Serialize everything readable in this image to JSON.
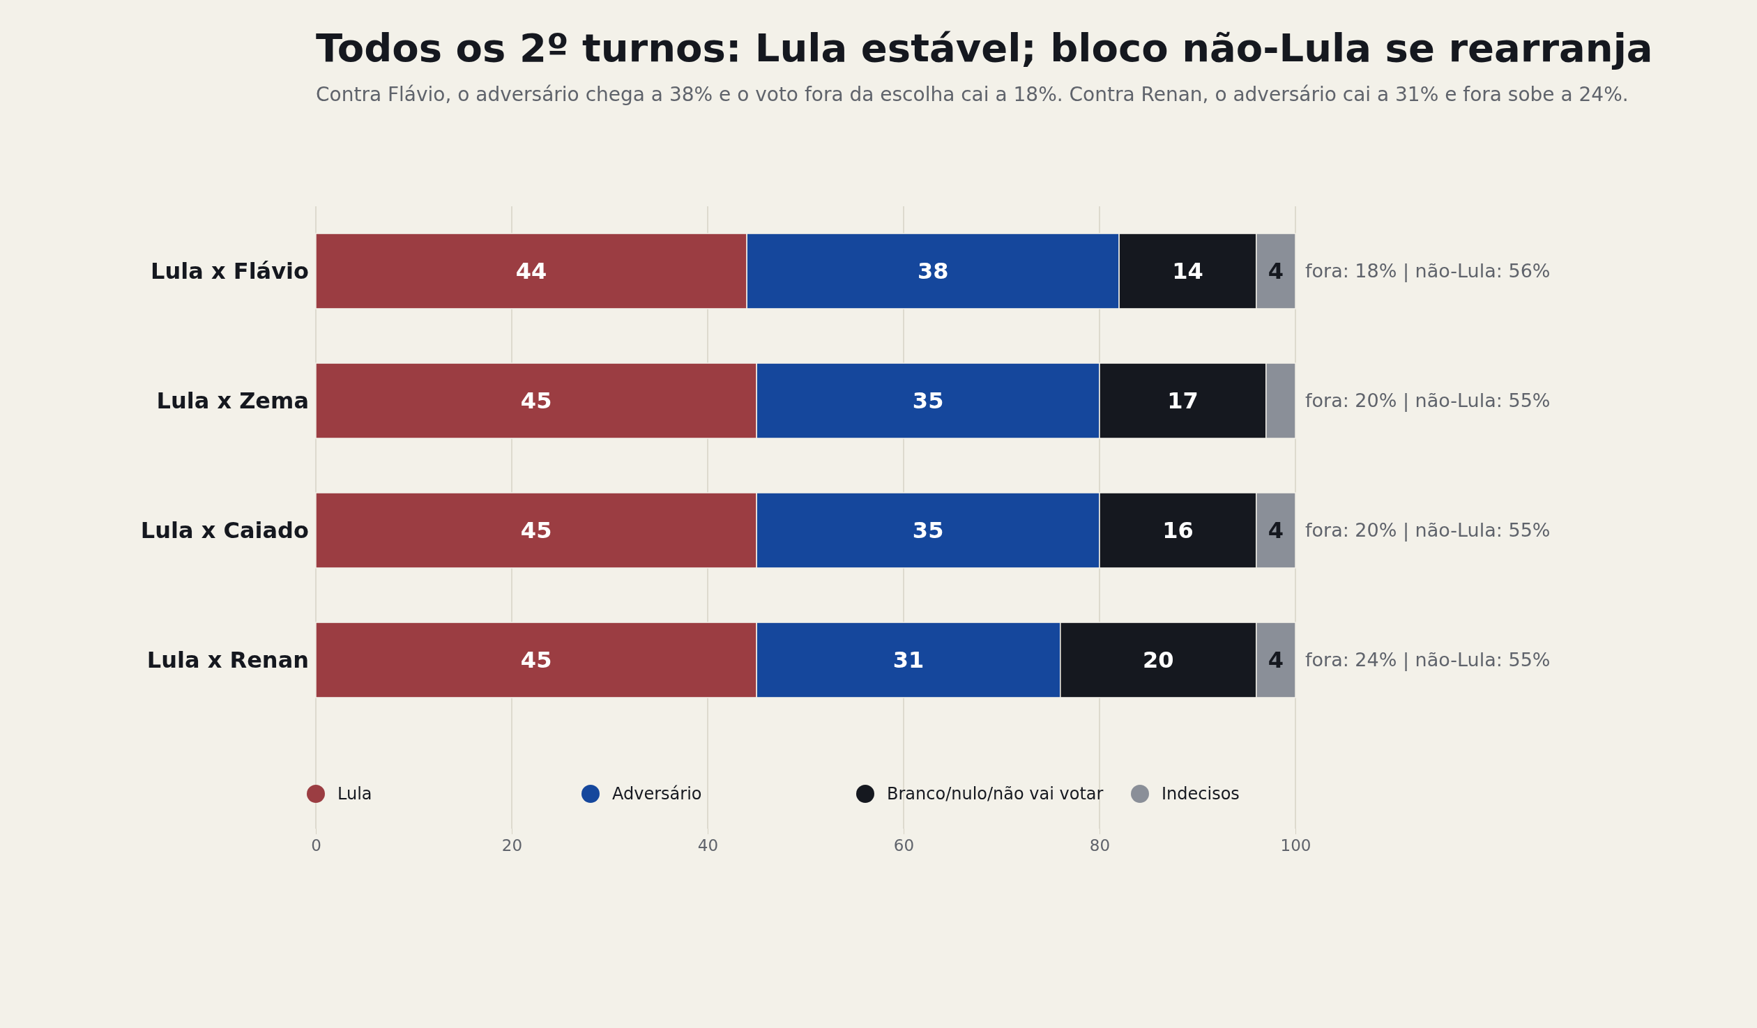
{
  "chart_data": {
    "type": "bar",
    "orientation": "horizontal",
    "stacked": true,
    "title": "Todos os 2º turnos: Lula estável; bloco não-Lula se rearranja",
    "subtitle": "Contra Flávio, o adversário chega a 38% e o voto fora da escolha cai a 18%. Contra Renan, o adversário cai a 31% e fora sobe a 24%.",
    "categories": [
      "Lula x Flávio",
      "Lula x Zema",
      "Lula x Caiado",
      "Lula x Renan"
    ],
    "series": [
      {
        "name": "Lula",
        "color": "#9b3d42",
        "values": [
          44,
          45,
          45,
          45
        ],
        "value_labels": [
          "44",
          "45",
          "45",
          "45"
        ]
      },
      {
        "name": "Adversário",
        "color": "#15479c",
        "values": [
          38,
          35,
          35,
          31
        ],
        "value_labels": [
          "38",
          "35",
          "35",
          "31"
        ]
      },
      {
        "name": "Branco/nulo/não vai votar",
        "color": "#15181f",
        "values": [
          14,
          17,
          16,
          20
        ],
        "value_labels": [
          "14",
          "17",
          "16",
          "20"
        ]
      },
      {
        "name": "Indecisos",
        "color": "#8a8f98",
        "values": [
          4,
          3,
          4,
          4
        ],
        "value_labels": [
          "4",
          null,
          "4",
          "4"
        ]
      }
    ],
    "xlim": [
      0,
      100
    ],
    "xticks": [
      0,
      20,
      40,
      60,
      80,
      100
    ],
    "grid": "x",
    "legend": "bottom",
    "annotations": [
      "fora: 18% | não-Lula: 56%",
      "fora: 20% | não-Lula: 55%",
      "fora: 20% | não-Lula: 55%",
      "fora: 24% | não-Lula: 55%"
    ]
  }
}
